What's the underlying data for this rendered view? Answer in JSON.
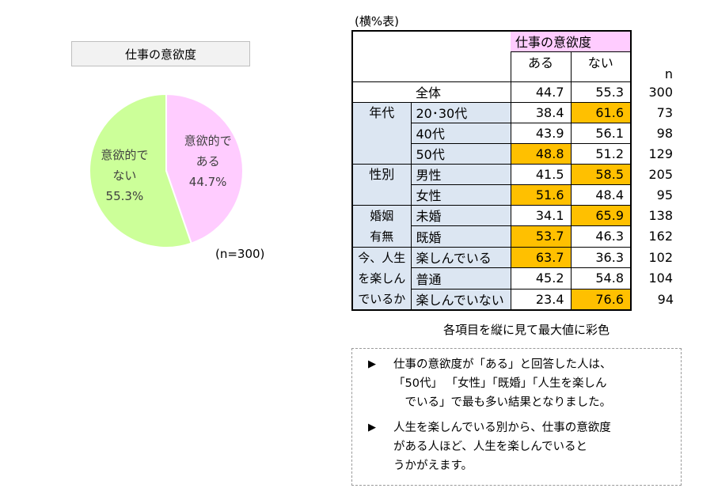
{
  "pie_title": "仕事の意欲度",
  "pie_n": "(n=300)",
  "chart_data": [
    {
      "type": "pie",
      "title": "仕事の意欲度",
      "slices": [
        {
          "label": "意欲的で ある",
          "label_lines": [
            "意欲的で",
            "ある"
          ],
          "value": 44.7,
          "value_text": "44.7%",
          "color": "#ffccff"
        },
        {
          "label": "意欲的で ない",
          "label_lines": [
            "意欲的で",
            "ない"
          ],
          "value": 55.3,
          "value_text": "55.3%",
          "color": "#ccff99"
        }
      ],
      "n": "(n=300)"
    },
    {
      "type": "table",
      "caption": "(横%表)",
      "header": {
        "group": "仕事の意欲度",
        "columns": [
          "ある",
          "ない"
        ],
        "n_label": "n"
      },
      "total": {
        "label": "全体",
        "aru": "44.7",
        "nai": "55.3",
        "n": "300"
      },
      "groups": [
        {
          "category": "年代",
          "rows": [
            {
              "label": "20･30代",
              "aru": "38.4",
              "nai": "61.6",
              "n": "73",
              "hi": "nai"
            },
            {
              "label": "40代",
              "aru": "43.9",
              "nai": "56.1",
              "n": "98",
              "hi": ""
            },
            {
              "label": "50代",
              "aru": "48.8",
              "nai": "51.2",
              "n": "129",
              "hi": "aru"
            }
          ]
        },
        {
          "category": "性別",
          "rows": [
            {
              "label": "男性",
              "aru": "41.5",
              "nai": "58.5",
              "n": "205",
              "hi": "nai"
            },
            {
              "label": "女性",
              "aru": "51.6",
              "nai": "48.4",
              "n": "95",
              "hi": "aru"
            }
          ]
        },
        {
          "category": "婚姻\n有無",
          "rows": [
            {
              "label": "未婚",
              "aru": "34.1",
              "nai": "65.9",
              "n": "138",
              "hi": "nai"
            },
            {
              "label": "既婚",
              "aru": "53.7",
              "nai": "46.3",
              "n": "162",
              "hi": "aru"
            }
          ]
        },
        {
          "category": "今、人生\nを楽しん\nでいるか",
          "rows": [
            {
              "label": "楽しんでいる",
              "aru": "63.7",
              "nai": "36.3",
              "n": "102",
              "hi": "aru"
            },
            {
              "label": "普通",
              "aru": "45.2",
              "nai": "54.8",
              "n": "104",
              "hi": ""
            },
            {
              "label": "楽しんでいない",
              "aru": "23.4",
              "nai": "76.6",
              "n": "94",
              "hi": "nai"
            }
          ]
        }
      ],
      "highlight_color": "#ffc000"
    }
  ],
  "table_note": "各項目を縦に見て最大値に彩色",
  "bullet_glyph": "▶",
  "notes": [
    [
      "仕事の意欲度が「ある」と回答した人は、",
      "「50代」 「女性」「既婚」「人生を楽しん",
      "　でいる」で最も多い結果となりました。"
    ],
    [
      "人生を楽しんでいる別から、仕事の意欲度",
      "がある人ほど、人生を楽しんでいると",
      "うかがえます。"
    ]
  ]
}
